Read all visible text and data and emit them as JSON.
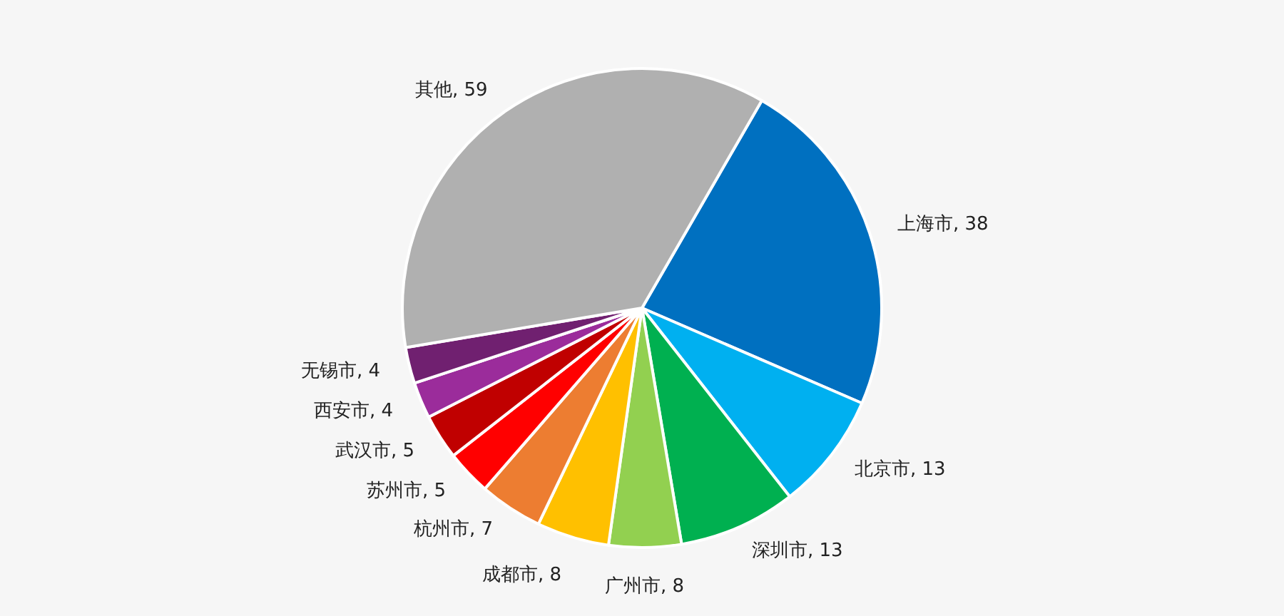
{
  "chart_data": {
    "type": "pie",
    "categories": [
      "上海市",
      "北京市",
      "深圳市",
      "广州市",
      "成都市",
      "杭州市",
      "苏州市",
      "武汉市",
      "西安市",
      "无锡市",
      "其他"
    ],
    "values": [
      38,
      13,
      13,
      8,
      8,
      7,
      5,
      5,
      4,
      4,
      59
    ],
    "value_labels": [
      ", 38",
      ", 13",
      ", 13",
      ", 8",
      ", 8",
      ", 7",
      ", 5",
      ", 5",
      ", 4",
      ", 4",
      ", 59"
    ],
    "colors": [
      "#0070c0",
      "#00b0f0",
      "#00b050",
      "#92d050",
      "#ffc000",
      "#ed7d31",
      "#ff0000",
      "#c00000",
      "#9b2c9b",
      "#702070",
      "#b0b0b0"
    ],
    "legend": false
  }
}
